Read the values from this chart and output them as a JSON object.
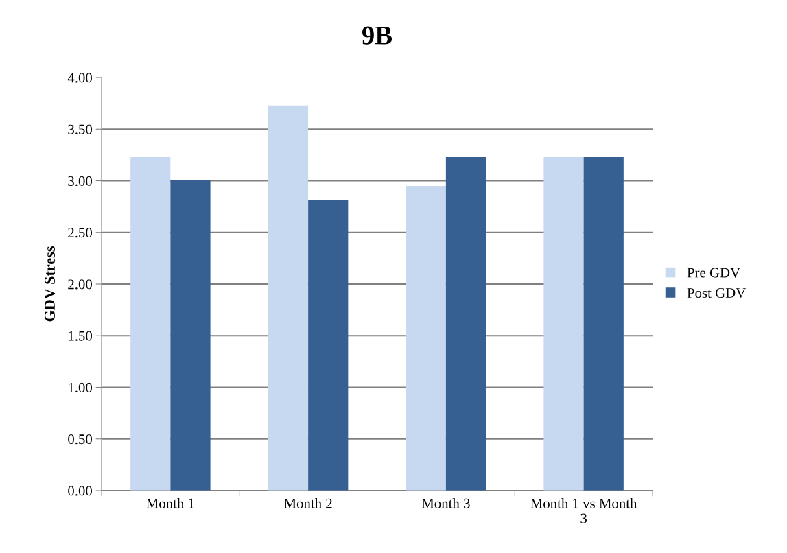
{
  "chart_data": {
    "type": "bar",
    "title": "9B",
    "ylabel": "GDV Stress",
    "categories": [
      "Month 1",
      "Month 2",
      "Month 3",
      "Month 1 vs Month\n3"
    ],
    "series": [
      {
        "name": "Pre GDV",
        "color": "#c6d9f1",
        "values": [
          3.23,
          3.73,
          2.95,
          3.23
        ]
      },
      {
        "name": "Post GDV",
        "color": "#366092",
        "values": [
          3.01,
          2.81,
          3.23,
          3.23
        ]
      }
    ],
    "ylim": [
      0,
      4
    ],
    "yticks": [
      {
        "value": 0,
        "label": "0.00"
      },
      {
        "value": 0.5,
        "label": "0.50"
      },
      {
        "value": 1,
        "label": "1.00"
      },
      {
        "value": 1.5,
        "label": "1.50"
      },
      {
        "value": 2,
        "label": "2.00"
      },
      {
        "value": 2.5,
        "label": "2.50"
      },
      {
        "value": 3,
        "label": "3.00"
      },
      {
        "value": 3.5,
        "label": "3.50"
      },
      {
        "value": 4,
        "label": "4.00"
      }
    ],
    "grid": "y",
    "legend": "right"
  }
}
